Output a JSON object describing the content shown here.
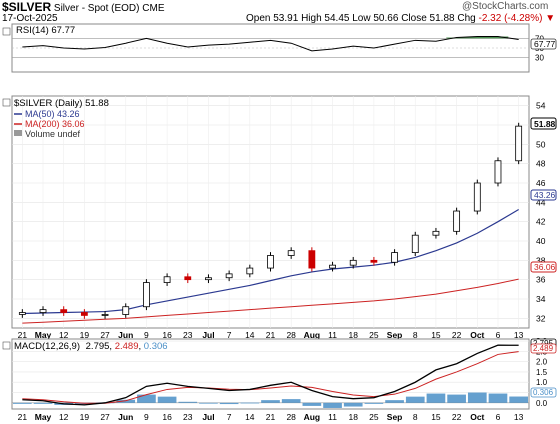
{
  "header": {
    "symbol": "$SILVER",
    "name": "Silver - Spot (EOD)",
    "exchange": "CME",
    "date": "17-Oct-2025",
    "watermark": "@StockCharts.com",
    "open_label": "Open",
    "open": "53.91",
    "high_label": "High",
    "high": "54.45",
    "low_label": "Low",
    "low": "50.66",
    "close_label": "Close",
    "close": "51.88",
    "chg_label": "Chg",
    "chg": "-2.32 (-4.28%)",
    "chg_arrow": "▼"
  },
  "x_axis_labels": [
    "21",
    "May",
    "12",
    "19",
    "27",
    "Jun",
    "9",
    "16",
    "23",
    "Jul",
    "7",
    "14",
    "21",
    "28",
    "Aug",
    "11",
    "18",
    "25",
    "Sep",
    "8",
    "15",
    "22",
    "Oct",
    "6",
    "13"
  ],
  "rsi_panel": {
    "legend": "RSI(14) 67.77",
    "value_tag": "67.77",
    "y_ticks": [
      "70",
      "50",
      "30"
    ],
    "overbought": 70,
    "oversold": 30,
    "colors": {
      "line": "#000000",
      "fill": "#2e7d32"
    }
  },
  "price_panel": {
    "legend_main": "$SILVER (Daily) 51.88",
    "legend_ma50": "MA(50) 43.26",
    "legend_ma200": "MA(200) 36.06",
    "legend_volume": "Volume undef",
    "tags": {
      "close": "51.88",
      "ma50": "43.26",
      "ma200": "36.06"
    },
    "y_ticks": [
      "54",
      "52",
      "50",
      "48",
      "46",
      "44",
      "42",
      "40",
      "38",
      "36",
      "34",
      "32"
    ],
    "colors": {
      "up": "#000000",
      "down": "#cc0000",
      "ma50": "#2b3990",
      "ma200": "#cc2222"
    }
  },
  "macd_panel": {
    "legend_prefix": "MACD(12,26,9)",
    "macd": "2.795",
    "signal": "2.489",
    "hist": "0.306",
    "tags": {
      "macd": "2.795",
      "signal": "2.489",
      "hist": "0.306"
    },
    "y_ticks": [
      "3.0",
      "2.5",
      "2.0",
      "1.5",
      "1.0",
      "0.5",
      "0.0"
    ],
    "colors": {
      "macd": "#000000",
      "signal": "#cc2222",
      "hist": "#4a8fc7"
    }
  },
  "chart_data": {
    "type": "line",
    "xlabel": "",
    "ylabel": "",
    "ylim": [
      31,
      55
    ],
    "x_category_labels": [
      "21",
      "May",
      "12",
      "19",
      "27",
      "Jun",
      "9",
      "16",
      "23",
      "Jul",
      "7",
      "14",
      "21",
      "28",
      "Aug",
      "11",
      "18",
      "25",
      "Sep",
      "8",
      "15",
      "22",
      "Oct",
      "6",
      "13"
    ],
    "series": [
      {
        "name": "$SILVER (Daily)",
        "values": [
          32.6,
          32.9,
          32.6,
          32.3,
          32.4,
          33.2,
          35.7,
          36.3,
          36.0,
          36.2,
          36.6,
          37.2,
          38.5,
          39.0,
          37.2,
          37.5,
          38.0,
          37.8,
          38.8,
          40.6,
          41.0,
          43.1,
          46.0,
          48.3,
          51.88
        ]
      },
      {
        "name": "MA(50)",
        "values": [
          32.5,
          32.55,
          32.6,
          32.65,
          32.7,
          32.9,
          33.4,
          33.8,
          34.2,
          34.6,
          35.0,
          35.4,
          35.9,
          36.4,
          36.8,
          37.1,
          37.3,
          37.5,
          37.8,
          38.3,
          39.0,
          39.8,
          40.8,
          42.0,
          43.26
        ]
      },
      {
        "name": "MA(200)",
        "values": [
          31.5,
          31.6,
          31.7,
          31.8,
          31.9,
          32.0,
          32.15,
          32.3,
          32.45,
          32.6,
          32.75,
          32.9,
          33.05,
          33.2,
          33.35,
          33.5,
          33.65,
          33.8,
          34.0,
          34.25,
          34.5,
          34.85,
          35.2,
          35.6,
          36.06
        ]
      }
    ],
    "rsi": [
      52,
      55,
      50,
      48,
      51,
      60,
      70,
      60,
      52,
      56,
      58,
      62,
      66,
      60,
      44,
      48,
      54,
      50,
      58,
      66,
      64,
      72,
      74,
      74,
      67.77
    ],
    "macd": {
      "macd": [
        0.15,
        0.1,
        -0.05,
        -0.1,
        0.0,
        0.25,
        0.8,
        0.95,
        0.8,
        0.7,
        0.6,
        0.65,
        0.85,
        1.0,
        0.6,
        0.3,
        0.2,
        0.25,
        0.55,
        1.0,
        1.6,
        1.9,
        2.4,
        2.8,
        2.795
      ],
      "signal": [
        0.2,
        0.15,
        0.05,
        -0.02,
        -0.02,
        0.1,
        0.4,
        0.65,
        0.75,
        0.72,
        0.66,
        0.64,
        0.72,
        0.82,
        0.75,
        0.55,
        0.38,
        0.3,
        0.42,
        0.7,
        1.15,
        1.5,
        1.9,
        2.35,
        2.489
      ],
      "hist": [
        -0.05,
        -0.05,
        -0.1,
        -0.08,
        0.02,
        0.15,
        0.4,
        0.3,
        0.05,
        -0.02,
        -0.06,
        0.01,
        0.13,
        0.18,
        -0.15,
        -0.25,
        -0.18,
        -0.05,
        0.13,
        0.3,
        0.45,
        0.4,
        0.5,
        0.45,
        0.306
      ]
    }
  }
}
